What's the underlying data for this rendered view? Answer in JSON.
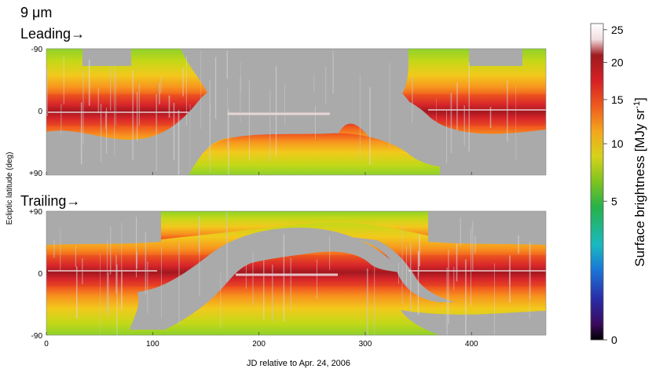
{
  "chart_data": {
    "type": "heatmap",
    "wavelength_label": "9 μm",
    "panels": [
      {
        "name": "Leading→",
        "yticks": [
          "-90",
          "0",
          "+90"
        ]
      },
      {
        "name": "Trailing→",
        "yticks": [
          "+90",
          "0",
          "-90"
        ]
      }
    ],
    "xlabel": "JD relative to Apr. 24, 2006",
    "ylabel": "Ecliptic latitude (deg)",
    "xlim": [
      0,
      470
    ],
    "xticks": [
      0,
      100,
      200,
      300,
      400
    ],
    "ylim": [
      -90,
      90
    ],
    "colorbar": {
      "label": "Surface brightness [MJy sr",
      "label_sup": "-1",
      "label_end": "]",
      "min": 0,
      "max": 26,
      "ticks": [
        0,
        5,
        10,
        15,
        20,
        25
      ],
      "scale": "sqrt"
    },
    "colors": {
      "no_data": "#aaaaaa",
      "colormap": [
        "#000000",
        "#3a0a5e",
        "#2a2ca8",
        "#1b75d6",
        "#19b9c0",
        "#27b24a",
        "#7ec31f",
        "#d6d21a",
        "#f4a51e",
        "#ee5a1d",
        "#d61f26",
        "#9e1b1f",
        "#f2dde0",
        "#ffffff"
      ]
    }
  }
}
